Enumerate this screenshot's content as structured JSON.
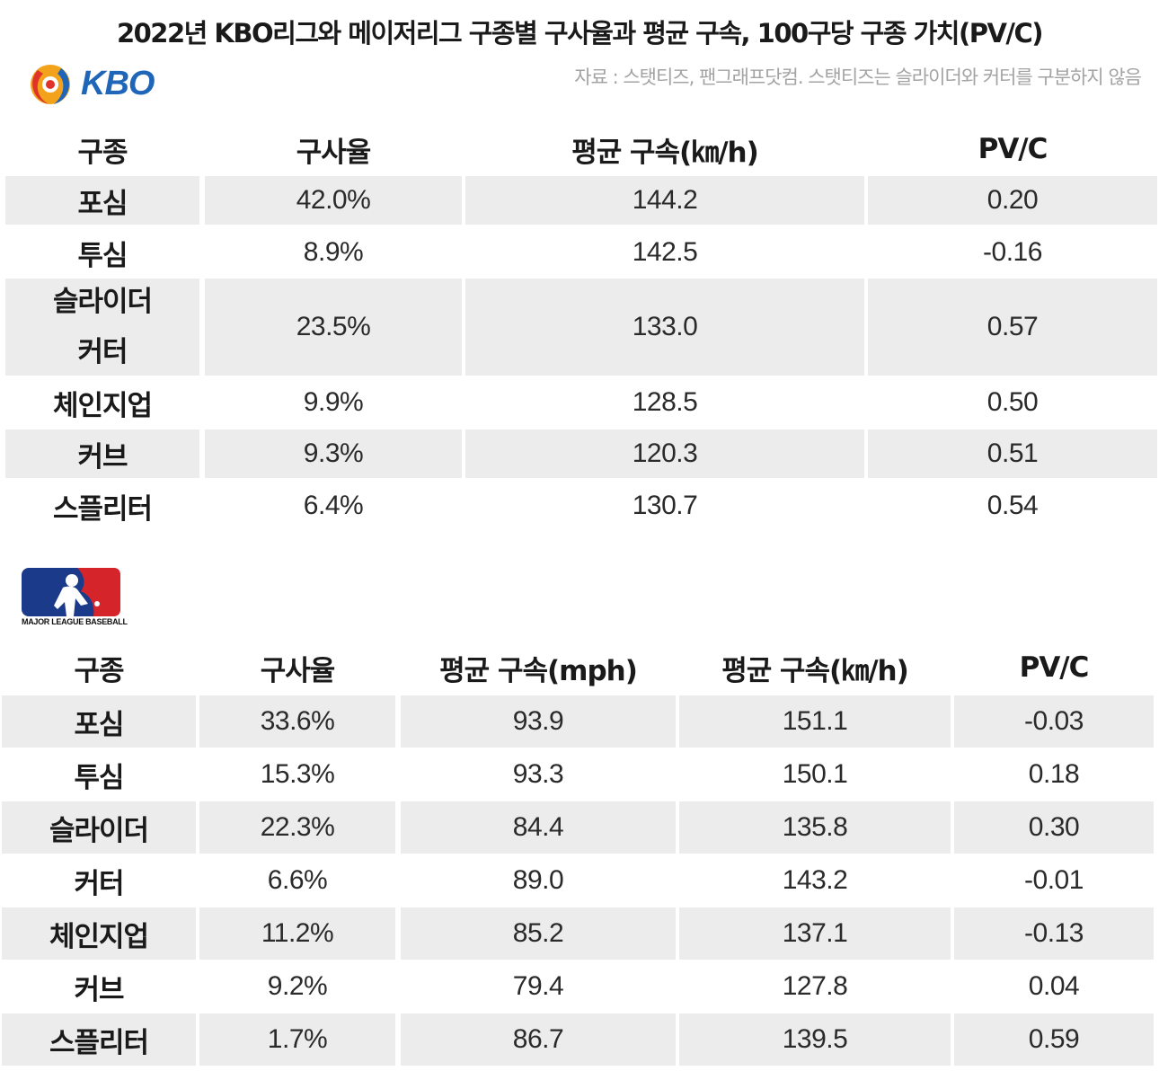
{
  "title": "2022년 KBO리그와 메이저리그 구종별 구사율과 평균 구속, 100구당 구종 가치(PV/C)",
  "source": "자료 : 스탯티즈, 팬그래프닷컴. 스탯티즈는 슬라이더와 커터를 구분하지 않음",
  "kbo": {
    "logo_text": "KBO",
    "headers": [
      "구종",
      "구사율",
      "평균 구속(㎞/h)",
      "PV/C"
    ],
    "rows": [
      {
        "pitch": "포심",
        "usage": "42.0%",
        "kmh": "144.2",
        "pvc": "0.20"
      },
      {
        "pitch": "투심",
        "usage": "8.9%",
        "kmh": "142.5",
        "pvc": "-0.16"
      },
      {
        "pitch": "슬라이더",
        "pitch2": "커터",
        "usage": "23.5%",
        "kmh": "133.0",
        "pvc": "0.57"
      },
      {
        "pitch": "체인지업",
        "usage": "9.9%",
        "kmh": "128.5",
        "pvc": "0.50"
      },
      {
        "pitch": "커브",
        "usage": "9.3%",
        "kmh": "120.3",
        "pvc": "0.51"
      },
      {
        "pitch": "스플리터",
        "usage": "6.4%",
        "kmh": "130.7",
        "pvc": "0.54"
      }
    ]
  },
  "mlb": {
    "logo_text": "MAJOR LEAGUE BASEBALL",
    "headers": [
      "구종",
      "구사율",
      "평균 구속(mph)",
      "평균 구속(㎞/h)",
      "PV/C"
    ],
    "rows": [
      {
        "pitch": "포심",
        "usage": "33.6%",
        "mph": "93.9",
        "kmh": "151.1",
        "pvc": "-0.03"
      },
      {
        "pitch": "투심",
        "usage": "15.3%",
        "mph": "93.3",
        "kmh": "150.1",
        "pvc": "0.18"
      },
      {
        "pitch": "슬라이더",
        "usage": "22.3%",
        "mph": "84.4",
        "kmh": "135.8",
        "pvc": "0.30"
      },
      {
        "pitch": "커터",
        "usage": "6.6%",
        "mph": "89.0",
        "kmh": "143.2",
        "pvc": "-0.01"
      },
      {
        "pitch": "체인지업",
        "usage": "11.2%",
        "mph": "85.2",
        "kmh": "137.1",
        "pvc": "-0.13"
      },
      {
        "pitch": "커브",
        "usage": "9.2%",
        "mph": "79.4",
        "kmh": "127.8",
        "pvc": "0.04"
      },
      {
        "pitch": "스플리터",
        "usage": "1.7%",
        "mph": "86.7",
        "kmh": "139.5",
        "pvc": "0.59"
      }
    ]
  }
}
